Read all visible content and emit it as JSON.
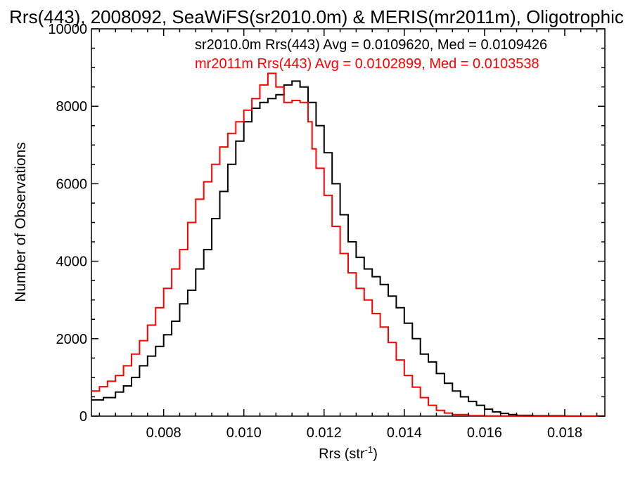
{
  "chart_data": {
    "type": "line",
    "title": "Rrs(443), 2008092, SeaWiFS(sr2010.0m) & MERIS(mr2011m), Oligotrophic",
    "xlabel": "Rrs (str",
    "xlabel_sup": "-1",
    "xlabel_close": ")",
    "ylabel": "Number of Observations",
    "xlim": [
      0.0062,
      0.019
    ],
    "ylim": [
      0,
      10000
    ],
    "xticks": [
      0.008,
      0.01,
      0.012,
      0.014,
      0.016,
      0.018
    ],
    "xtick_labels": [
      "0.008",
      "0.010",
      "0.012",
      "0.014",
      "0.016",
      "0.018"
    ],
    "yticks": [
      0,
      2000,
      4000,
      6000,
      8000,
      10000
    ],
    "ytick_labels": [
      "0",
      "2000",
      "4000",
      "6000",
      "8000",
      "10000"
    ],
    "step": true,
    "grid": false,
    "series": [
      {
        "annotation": "sr2010.0m Rrs(443) Avg = 0.0109620, Med = 0.0109426",
        "color": "#000000",
        "points": [
          [
            0.0062,
            420
          ],
          [
            0.0065,
            480
          ],
          [
            0.0068,
            620
          ],
          [
            0.007,
            780
          ],
          [
            0.0072,
            1000
          ],
          [
            0.0074,
            1300
          ],
          [
            0.0076,
            1550
          ],
          [
            0.0078,
            1800
          ],
          [
            0.008,
            2100
          ],
          [
            0.0082,
            2450
          ],
          [
            0.0084,
            2900
          ],
          [
            0.0086,
            3250
          ],
          [
            0.0088,
            3800
          ],
          [
            0.009,
            4300
          ],
          [
            0.0092,
            5100
          ],
          [
            0.0094,
            5800
          ],
          [
            0.0096,
            6500
          ],
          [
            0.0098,
            7100
          ],
          [
            0.01,
            7600
          ],
          [
            0.0102,
            7950
          ],
          [
            0.0104,
            8100
          ],
          [
            0.0106,
            8200
          ],
          [
            0.0108,
            8300
          ],
          [
            0.011,
            8550
          ],
          [
            0.0112,
            8650
          ],
          [
            0.0114,
            8500
          ],
          [
            0.0116,
            8100
          ],
          [
            0.0118,
            7500
          ],
          [
            0.012,
            6800
          ],
          [
            0.0122,
            6000
          ],
          [
            0.0124,
            5200
          ],
          [
            0.0126,
            4500
          ],
          [
            0.0128,
            4100
          ],
          [
            0.013,
            3800
          ],
          [
            0.0132,
            3600
          ],
          [
            0.0134,
            3400
          ],
          [
            0.0136,
            3100
          ],
          [
            0.0138,
            2800
          ],
          [
            0.014,
            2400
          ],
          [
            0.0142,
            2000
          ],
          [
            0.0144,
            1600
          ],
          [
            0.0146,
            1400
          ],
          [
            0.0148,
            1100
          ],
          [
            0.015,
            850
          ],
          [
            0.0152,
            650
          ],
          [
            0.0154,
            500
          ],
          [
            0.0156,
            380
          ],
          [
            0.0158,
            280
          ],
          [
            0.016,
            180
          ],
          [
            0.0162,
            110
          ],
          [
            0.0164,
            70
          ],
          [
            0.0166,
            40
          ],
          [
            0.0168,
            20
          ],
          [
            0.0172,
            10
          ],
          [
            0.018,
            2
          ],
          [
            0.019,
            0
          ]
        ]
      },
      {
        "annotation": "mr2011m Rrs(443) Avg = 0.0102899, Med = 0.0103538",
        "color": "#ff0000",
        "points": [
          [
            0.0062,
            650
          ],
          [
            0.0064,
            760
          ],
          [
            0.0066,
            900
          ],
          [
            0.0068,
            1050
          ],
          [
            0.007,
            1300
          ],
          [
            0.0072,
            1600
          ],
          [
            0.0074,
            1950
          ],
          [
            0.0076,
            2350
          ],
          [
            0.0078,
            2800
          ],
          [
            0.008,
            3300
          ],
          [
            0.0082,
            3800
          ],
          [
            0.0084,
            4300
          ],
          [
            0.0086,
            5000
          ],
          [
            0.0088,
            5600
          ],
          [
            0.009,
            6050
          ],
          [
            0.0092,
            6500
          ],
          [
            0.0094,
            6950
          ],
          [
            0.0096,
            7300
          ],
          [
            0.0098,
            7600
          ],
          [
            0.01,
            7900
          ],
          [
            0.0102,
            8200
          ],
          [
            0.0104,
            8550
          ],
          [
            0.0106,
            8850
          ],
          [
            0.0108,
            8500
          ],
          [
            0.011,
            8100
          ],
          [
            0.0112,
            8150
          ],
          [
            0.0114,
            8100
          ],
          [
            0.0116,
            7600
          ],
          [
            0.0117,
            6900
          ],
          [
            0.0118,
            6400
          ],
          [
            0.012,
            5700
          ],
          [
            0.0122,
            4900
          ],
          [
            0.0124,
            4200
          ],
          [
            0.0126,
            3700
          ],
          [
            0.0128,
            3300
          ],
          [
            0.013,
            3000
          ],
          [
            0.0132,
            2650
          ],
          [
            0.0134,
            2300
          ],
          [
            0.0136,
            1900
          ],
          [
            0.0138,
            1450
          ],
          [
            0.014,
            1050
          ],
          [
            0.0142,
            750
          ],
          [
            0.0144,
            480
          ],
          [
            0.0146,
            280
          ],
          [
            0.0148,
            150
          ],
          [
            0.015,
            80
          ],
          [
            0.0152,
            40
          ],
          [
            0.0156,
            15
          ],
          [
            0.016,
            5
          ],
          [
            0.017,
            1
          ],
          [
            0.019,
            0
          ]
        ]
      }
    ]
  }
}
